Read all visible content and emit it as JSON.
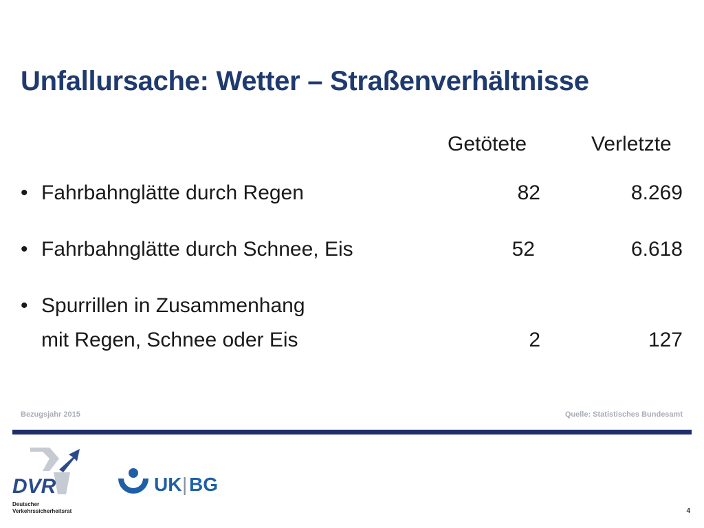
{
  "slide": {
    "title": "Unfallursache: Wetter – Straßenverhältnisse",
    "columns": [
      "Getötete",
      "Verletzte"
    ],
    "bullet_glyph": "•",
    "rows": [
      {
        "label": "Fahrbahnglätte durch Regen",
        "label_cont": "",
        "getoetete": "82",
        "verletzte": "8.269"
      },
      {
        "label": "Fahrbahnglätte durch Schnee, Eis",
        "label_cont": "",
        "getoetete": "52",
        "verletzte": "6.618"
      },
      {
        "label": "Spurrillen in Zusammenhang",
        "label_cont": "mit Regen, Schnee oder Eis",
        "getoetete": "2",
        "verletzte": "127"
      }
    ]
  },
  "footer": {
    "left": "Bezugsjahr 2015",
    "right": "Quelle: Statistisches Bundesamt",
    "page_number": "4"
  },
  "logos": {
    "dvr": {
      "mark": "DVR",
      "line1": "Deutscher",
      "line2": "Verkehrssicherheitsrat",
      "color": "#2b4a8b"
    },
    "ukbg": {
      "left": "UK",
      "sep": "|",
      "right": "BG",
      "color": "#1f5fa8"
    }
  },
  "colors": {
    "title": "#1f3a6e",
    "rule": "#1f2d6b",
    "footer_text": "#a8adb5"
  }
}
